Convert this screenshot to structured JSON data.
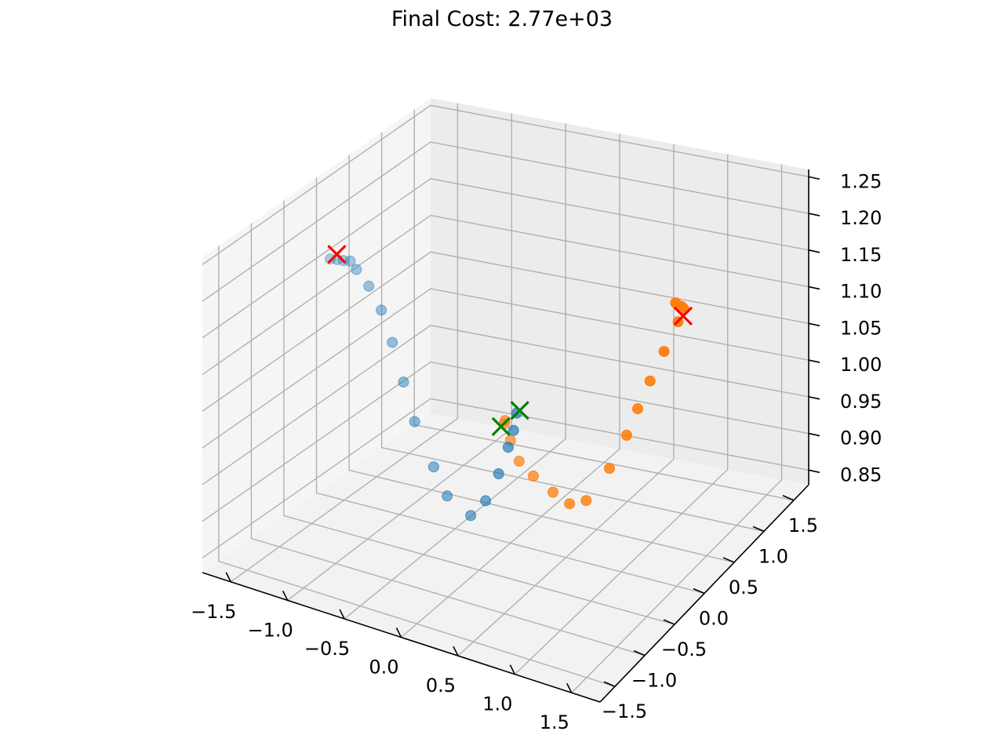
{
  "chart_data": {
    "type": "scatter",
    "projection": "3d",
    "title": "Final Cost: 2.77e+03",
    "xlabel": "",
    "ylabel": "",
    "zlabel": "",
    "xlim": [
      -1.75,
      1.75
    ],
    "ylim": [
      -1.75,
      1.75
    ],
    "zlim": [
      0.83,
      1.26
    ],
    "x_ticks": [
      "−1.5",
      "−1.0",
      "−0.5",
      "0.0",
      "0.5",
      "1.0",
      "1.5"
    ],
    "y_ticks": [
      "−1.5",
      "−1.0",
      "−0.5",
      "0.0",
      "0.5",
      "1.0",
      "1.5"
    ],
    "z_ticks": [
      "0.85",
      "0.90",
      "0.95",
      "1.00",
      "1.05",
      "1.10",
      "1.15",
      "1.20",
      "1.25"
    ],
    "grid": true,
    "series": [
      {
        "color": "#1f77b4",
        "points": [
          [
            -1.45,
            -0.3,
            1.18
          ],
          [
            -1.4,
            -0.28,
            1.18
          ],
          [
            -1.35,
            -0.27,
            1.18
          ],
          [
            -1.3,
            -0.25,
            1.18
          ],
          [
            -1.25,
            -0.24,
            1.17
          ],
          [
            -1.15,
            -0.22,
            1.15
          ],
          [
            -1.05,
            -0.2,
            1.12
          ],
          [
            -0.95,
            -0.2,
            1.08
          ],
          [
            -0.85,
            -0.2,
            1.03
          ],
          [
            -0.75,
            -0.2,
            0.98
          ],
          [
            -0.55,
            -0.25,
            0.93
          ],
          [
            -0.4,
            -0.3,
            0.9
          ],
          [
            -0.2,
            -0.28,
            0.88
          ],
          [
            -0.1,
            -0.22,
            0.9
          ],
          [
            -0.05,
            -0.1,
            0.93
          ],
          [
            -0.02,
            0.0,
            0.96
          ],
          [
            0.0,
            0.05,
            0.98
          ],
          [
            0.0,
            0.1,
            1.0
          ]
        ]
      },
      {
        "color": "#ff7f0e",
        "points": [
          [
            1.3,
            0.35,
            1.18
          ],
          [
            1.33,
            0.33,
            1.18
          ],
          [
            1.37,
            0.32,
            1.18
          ],
          [
            1.4,
            0.3,
            1.18
          ],
          [
            1.35,
            0.3,
            1.16
          ],
          [
            1.25,
            0.25,
            1.12
          ],
          [
            1.15,
            0.2,
            1.08
          ],
          [
            1.05,
            0.18,
            1.04
          ],
          [
            0.95,
            0.18,
            1.0
          ],
          [
            0.8,
            0.17,
            0.95
          ],
          [
            0.6,
            0.15,
            0.9
          ],
          [
            0.45,
            0.15,
            0.89
          ],
          [
            0.3,
            0.15,
            0.9
          ],
          [
            0.15,
            0.1,
            0.92
          ],
          [
            0.05,
            0.05,
            0.94
          ],
          [
            0.0,
            0.0,
            0.97
          ],
          [
            -0.02,
            -0.05,
            1.0
          ],
          [
            0.0,
            -0.1,
            1.0
          ]
        ]
      }
    ],
    "start_markers": [
      {
        "color": "#008000",
        "point": [
          0.0,
          -0.15,
          1.0
        ]
      },
      {
        "color": "#008000",
        "point": [
          0.0,
          0.15,
          1.0
        ]
      }
    ],
    "end_markers": [
      {
        "color": "#ff0000",
        "point": [
          -1.45,
          -0.2,
          1.18
        ]
      },
      {
        "color": "#ff0000",
        "point": [
          1.45,
          0.2,
          1.18
        ]
      }
    ]
  }
}
